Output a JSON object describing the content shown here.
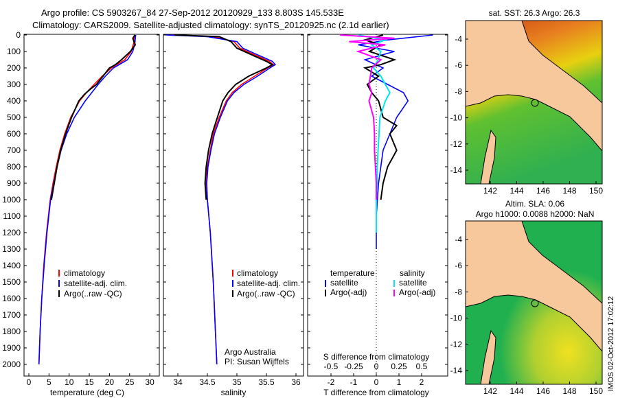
{
  "title": {
    "line1": "Argo profile: CS 5903267_84 27-Sep-2012 20120929_133 8.803S 145.533E",
    "line2": "Climatology: CARS2009. Satellite-adjusted climatology: synTS_20120925.nc (2.1d earlier)"
  },
  "colors": {
    "climatology": "#ff0000",
    "satellite": "#0000ff",
    "argo": "#000000",
    "s_satellite": "#00e5ee",
    "s_argo": "#ff00ff",
    "land": "#f7c89b"
  },
  "chart_data": [
    {
      "type": "line",
      "name": "temperature-profile",
      "xlabel": "temperature (deg C)",
      "xlim": [
        -2,
        31
      ],
      "ylim": [
        0,
        2050
      ],
      "xticks": [
        "0",
        "5",
        "10",
        "15",
        "20",
        "25",
        "30"
      ],
      "yticks": [
        "0",
        "100",
        "200",
        "300",
        "400",
        "500",
        "600",
        "700",
        "800",
        "900",
        "1000",
        "1100",
        "1200",
        "1300",
        "1400",
        "1500",
        "1600",
        "1700",
        "1800",
        "1900",
        "2000"
      ],
      "legend": [
        "climatology",
        "satellite-adj. clim.",
        "Argo(..raw -QC)"
      ],
      "series": [
        {
          "name": "climatology",
          "depth": [
            0,
            50,
            100,
            150,
            200,
            250,
            300,
            350,
            400,
            500,
            600,
            700,
            800,
            900,
            1000,
            1200,
            1400,
            1600,
            1800,
            2000
          ],
          "values": [
            26.2,
            26,
            25.4,
            23.8,
            20.5,
            18.2,
            16.2,
            14.3,
            12.6,
            10.4,
            8.9,
            7.7,
            6.8,
            6,
            5.3,
            4.4,
            3.7,
            3.2,
            2.8,
            2.5
          ]
        },
        {
          "name": "satellite-adj. clim.",
          "depth": [
            0,
            50,
            100,
            150,
            200,
            250,
            300,
            350,
            400,
            500,
            600,
            700,
            800,
            900,
            1000,
            1200,
            1400,
            1600,
            1800,
            2000
          ],
          "values": [
            26.5,
            26.3,
            25.8,
            24.5,
            21,
            19,
            17.2,
            15.6,
            14,
            11.3,
            9.4,
            8,
            7,
            6.2,
            5.4,
            4.5,
            3.8,
            3.2,
            2.8,
            2.5
          ]
        },
        {
          "name": "Argo(..raw -QC)",
          "depth": [
            0,
            20,
            60,
            100,
            150,
            180,
            200,
            250,
            300,
            330,
            360,
            400,
            500,
            600,
            700,
            800,
            900,
            1000
          ],
          "values": [
            26.3,
            25.8,
            26.4,
            25.2,
            23,
            21.5,
            20,
            18.4,
            16.8,
            15.2,
            13.8,
            12.4,
            10.6,
            9.1,
            7.9,
            7,
            6.3,
            5.6
          ]
        }
      ]
    },
    {
      "type": "line",
      "name": "salinity-profile",
      "xlabel": "salinity",
      "xlim": [
        33.7,
        36.1
      ],
      "ylim": [
        0,
        2050
      ],
      "xticks": [
        "34",
        "34.5",
        "35",
        "35.5",
        "36"
      ],
      "legend": [
        "climatology",
        "satellite-adj. clim.",
        "Argo(..raw -QC)"
      ],
      "annotation": [
        "Argo Australia",
        "PI: Susan Wijffels"
      ],
      "series": [
        {
          "name": "climatology",
          "depth": [
            0,
            10,
            40,
            80,
            120,
            160,
            180,
            200,
            250,
            300,
            350,
            400,
            500,
            600,
            700,
            800,
            900,
            1000,
            1200,
            1500,
            2000
          ],
          "values": [
            33.9,
            34.6,
            34.95,
            35.05,
            35.3,
            35.55,
            35.62,
            35.52,
            35.3,
            35.08,
            34.92,
            34.82,
            34.7,
            34.6,
            34.55,
            34.5,
            34.48,
            34.5,
            34.55,
            34.6,
            34.66
          ]
        },
        {
          "name": "satellite-adj. clim.",
          "depth": [
            0,
            10,
            40,
            80,
            120,
            160,
            180,
            200,
            250,
            300,
            350,
            400,
            500,
            600,
            700,
            800,
            900,
            1000,
            1200,
            1500,
            2000
          ],
          "values": [
            33.8,
            34.5,
            35.0,
            35.1,
            35.35,
            35.6,
            35.65,
            35.56,
            35.35,
            35.12,
            34.95,
            34.84,
            34.72,
            34.62,
            34.56,
            34.51,
            34.49,
            34.5,
            34.55,
            34.6,
            34.66
          ]
        },
        {
          "name": "Argo(..raw -QC)",
          "depth": [
            0,
            10,
            40,
            80,
            120,
            160,
            180,
            200,
            250,
            300,
            350,
            400,
            500,
            600,
            700,
            800,
            900,
            1000
          ],
          "values": [
            33.95,
            34.7,
            34.9,
            35.0,
            35.25,
            35.5,
            35.6,
            35.5,
            35.2,
            34.98,
            34.85,
            34.76,
            34.67,
            34.58,
            34.52,
            34.48,
            34.46,
            34.48
          ]
        }
      ]
    },
    {
      "type": "line",
      "name": "difference-profile",
      "xlabel": "T difference from climatology",
      "xlabel_top": "S difference from climatology",
      "xlim": [
        -3,
        3
      ],
      "ylim": [
        0,
        2050
      ],
      "xticks": [
        "-2",
        "-1",
        "0",
        "1",
        "2"
      ],
      "xticks_top": [
        "-0.5",
        "-0.25",
        "0",
        "0.25",
        "0.5"
      ],
      "legend_titles": [
        "temperature",
        "salinity"
      ],
      "legend": [
        "satellite",
        "Argo(-adj)",
        "satellite",
        "Argo(-adj)"
      ],
      "series": [
        {
          "name": "T satellite",
          "depth": [
            0,
            30,
            60,
            100,
            150,
            200,
            250,
            300,
            350,
            400,
            500,
            600,
            700,
            800,
            900,
            1000,
            1100,
            1200,
            1300
          ],
          "values": [
            2.5,
            0.5,
            -0.8,
            0.8,
            -0.5,
            0.3,
            -0.2,
            0.5,
            1.2,
            1.4,
            0.9,
            0.6,
            0.3,
            0.2,
            0.1,
            0.05,
            0,
            0,
            0
          ]
        },
        {
          "name": "T Argo(-adj)",
          "depth": [
            0,
            30,
            60,
            100,
            150,
            180,
            200,
            250,
            300,
            350,
            400,
            500,
            550,
            600,
            700,
            800,
            900,
            1000
          ],
          "values": [
            0.3,
            -0.5,
            0.2,
            -0.3,
            0.8,
            0.2,
            -0.5,
            0.1,
            -0.4,
            -0.2,
            0.1,
            0.3,
            0.9,
            0.6,
            0.9,
            0.5,
            0.3,
            0.2
          ]
        },
        {
          "name": "S satellite",
          "depth": [
            0,
            30,
            60,
            100,
            150,
            200,
            250,
            300,
            350,
            400,
            500,
            600,
            700,
            800,
            900,
            1000,
            1100,
            1200
          ],
          "values": [
            -0.2,
            0.1,
            -0.05,
            0.05,
            0.02,
            -0.03,
            0.05,
            0.1,
            0.15,
            0.1,
            0.04,
            0.03,
            0.02,
            0.01,
            0.01,
            0,
            0,
            0
          ]
        },
        {
          "name": "S Argo(-adj)",
          "depth": [
            0,
            20,
            40,
            60,
            100,
            150,
            200,
            300,
            350,
            400,
            500,
            600,
            700,
            800,
            900,
            1000
          ],
          "values": [
            -0.4,
            0.2,
            -0.3,
            0.1,
            -0.2,
            0.05,
            -0.05,
            -0.08,
            -0.05,
            -0.08,
            -0.03,
            -0.02,
            -0.02,
            -0.01,
            0,
            0
          ]
        }
      ]
    }
  ],
  "maps": {
    "top": {
      "title": "sat. SST: 26.3 Argo: 26.3"
    },
    "bottom": {
      "title1": "Altim. SLA: 0.06",
      "title2": "Argo h1000: 0.0088 h2000: NaN"
    },
    "lon_ticks": [
      "142",
      "144",
      "146",
      "148",
      "150"
    ],
    "lat_ticks": [
      "-4",
      "-6",
      "-8",
      "-10",
      "-12",
      "-14"
    ]
  },
  "footer": {
    "stamp": "IMOS 02-Oct-2012 17:02:12"
  }
}
